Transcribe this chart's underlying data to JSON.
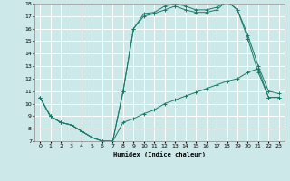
{
  "xlabel": "Humidex (Indice chaleur)",
  "xlim": [
    -0.5,
    23.5
  ],
  "ylim": [
    7,
    18
  ],
  "xticks": [
    0,
    1,
    2,
    3,
    4,
    5,
    6,
    7,
    8,
    9,
    10,
    11,
    12,
    13,
    14,
    15,
    16,
    17,
    18,
    19,
    20,
    21,
    22,
    23
  ],
  "yticks": [
    7,
    8,
    9,
    10,
    11,
    12,
    13,
    14,
    15,
    16,
    17,
    18
  ],
  "bg_color": "#cce8e8",
  "grid_color": "#ffffff",
  "line_color": "#1a7a6a",
  "curve1_x": [
    0,
    1,
    2,
    3,
    4,
    5,
    6,
    7,
    8,
    9,
    10,
    11,
    12,
    13,
    14,
    15,
    16,
    17,
    18,
    19,
    20,
    21,
    22,
    23
  ],
  "curve1_y": [
    10.5,
    9.0,
    8.5,
    8.3,
    7.8,
    7.3,
    7.0,
    7.0,
    8.5,
    8.8,
    9.2,
    9.5,
    10.0,
    10.3,
    10.6,
    10.9,
    11.2,
    11.5,
    11.8,
    12.0,
    12.5,
    12.8,
    10.5,
    10.5
  ],
  "curve2_x": [
    0,
    1,
    2,
    3,
    4,
    5,
    6,
    7,
    8,
    9,
    10,
    11,
    12,
    13,
    14,
    15,
    16,
    17,
    18,
    19,
    20,
    21,
    22,
    23
  ],
  "curve2_y": [
    10.5,
    9.0,
    8.5,
    8.3,
    7.8,
    7.3,
    7.0,
    7.0,
    11.0,
    16.0,
    17.0,
    17.2,
    17.5,
    17.8,
    17.5,
    17.3,
    17.3,
    17.5,
    18.2,
    17.5,
    15.2,
    12.5,
    10.5,
    10.5
  ],
  "curve3_x": [
    0,
    1,
    2,
    3,
    4,
    5,
    6,
    7,
    8,
    9,
    10,
    11,
    12,
    13,
    14,
    15,
    16,
    17,
    18,
    19,
    20,
    21,
    22,
    23
  ],
  "curve3_y": [
    10.5,
    9.0,
    8.5,
    8.3,
    7.8,
    7.3,
    7.0,
    7.0,
    11.0,
    16.0,
    17.2,
    17.3,
    17.8,
    18.0,
    17.8,
    17.5,
    17.5,
    17.7,
    18.2,
    17.5,
    15.5,
    13.0,
    11.0,
    10.8
  ]
}
